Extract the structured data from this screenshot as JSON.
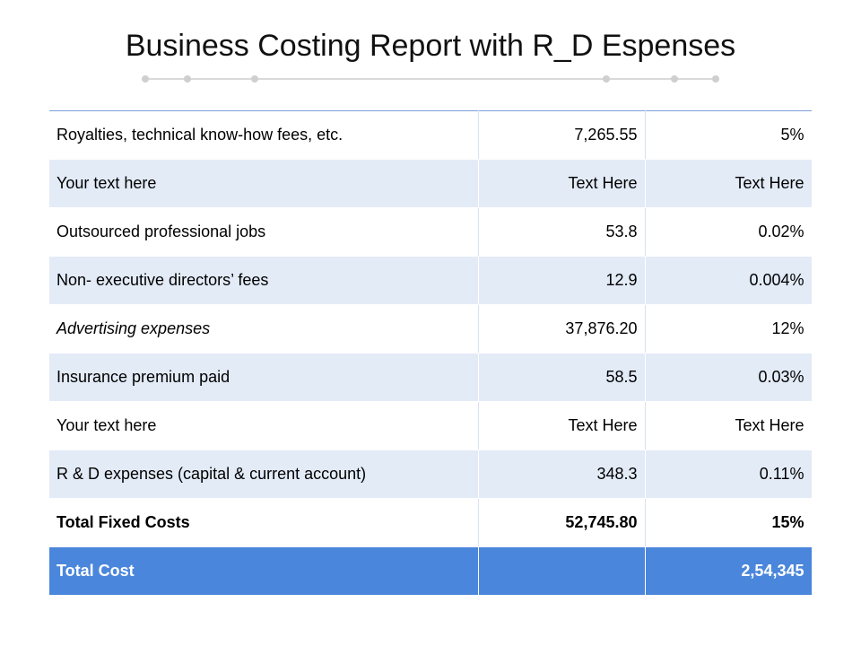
{
  "title": "Business Costing Report with R_D Espenses",
  "colors": {
    "row_alt": "#e3ebf7",
    "total_row": "#4a86db",
    "divider": "#d9d9d9"
  },
  "rows": [
    {
      "label": "Royalties, technical know-how  fees, etc.",
      "value": "7,265.55",
      "percent": "5%"
    },
    {
      "label": "Your text here",
      "value": "Text Here",
      "percent": "Text Here"
    },
    {
      "label": "Outsourced professional jobs",
      "value": "53.8",
      "percent": "0.02%"
    },
    {
      "label": "Non- executive directors’ fees",
      "value": "12.9",
      "percent": "0.004%"
    },
    {
      "label": "Advertising expenses",
      "value": "37,876.20",
      "percent": "12%"
    },
    {
      "label": "Insurance premium  paid",
      "value": "58.5",
      "percent": "0.03%"
    },
    {
      "label": "Your text here",
      "value": "Text Here",
      "percent": "Text Here"
    },
    {
      "label": "R & D expenses (capital & current account)",
      "value": "348.3",
      "percent": "0.11%"
    },
    {
      "label": "Total Fixed Costs",
      "value": "52,745.80",
      "percent": "15%"
    }
  ],
  "total": {
    "label": "Total Cost",
    "value": "",
    "percent": "2,54,345"
  }
}
